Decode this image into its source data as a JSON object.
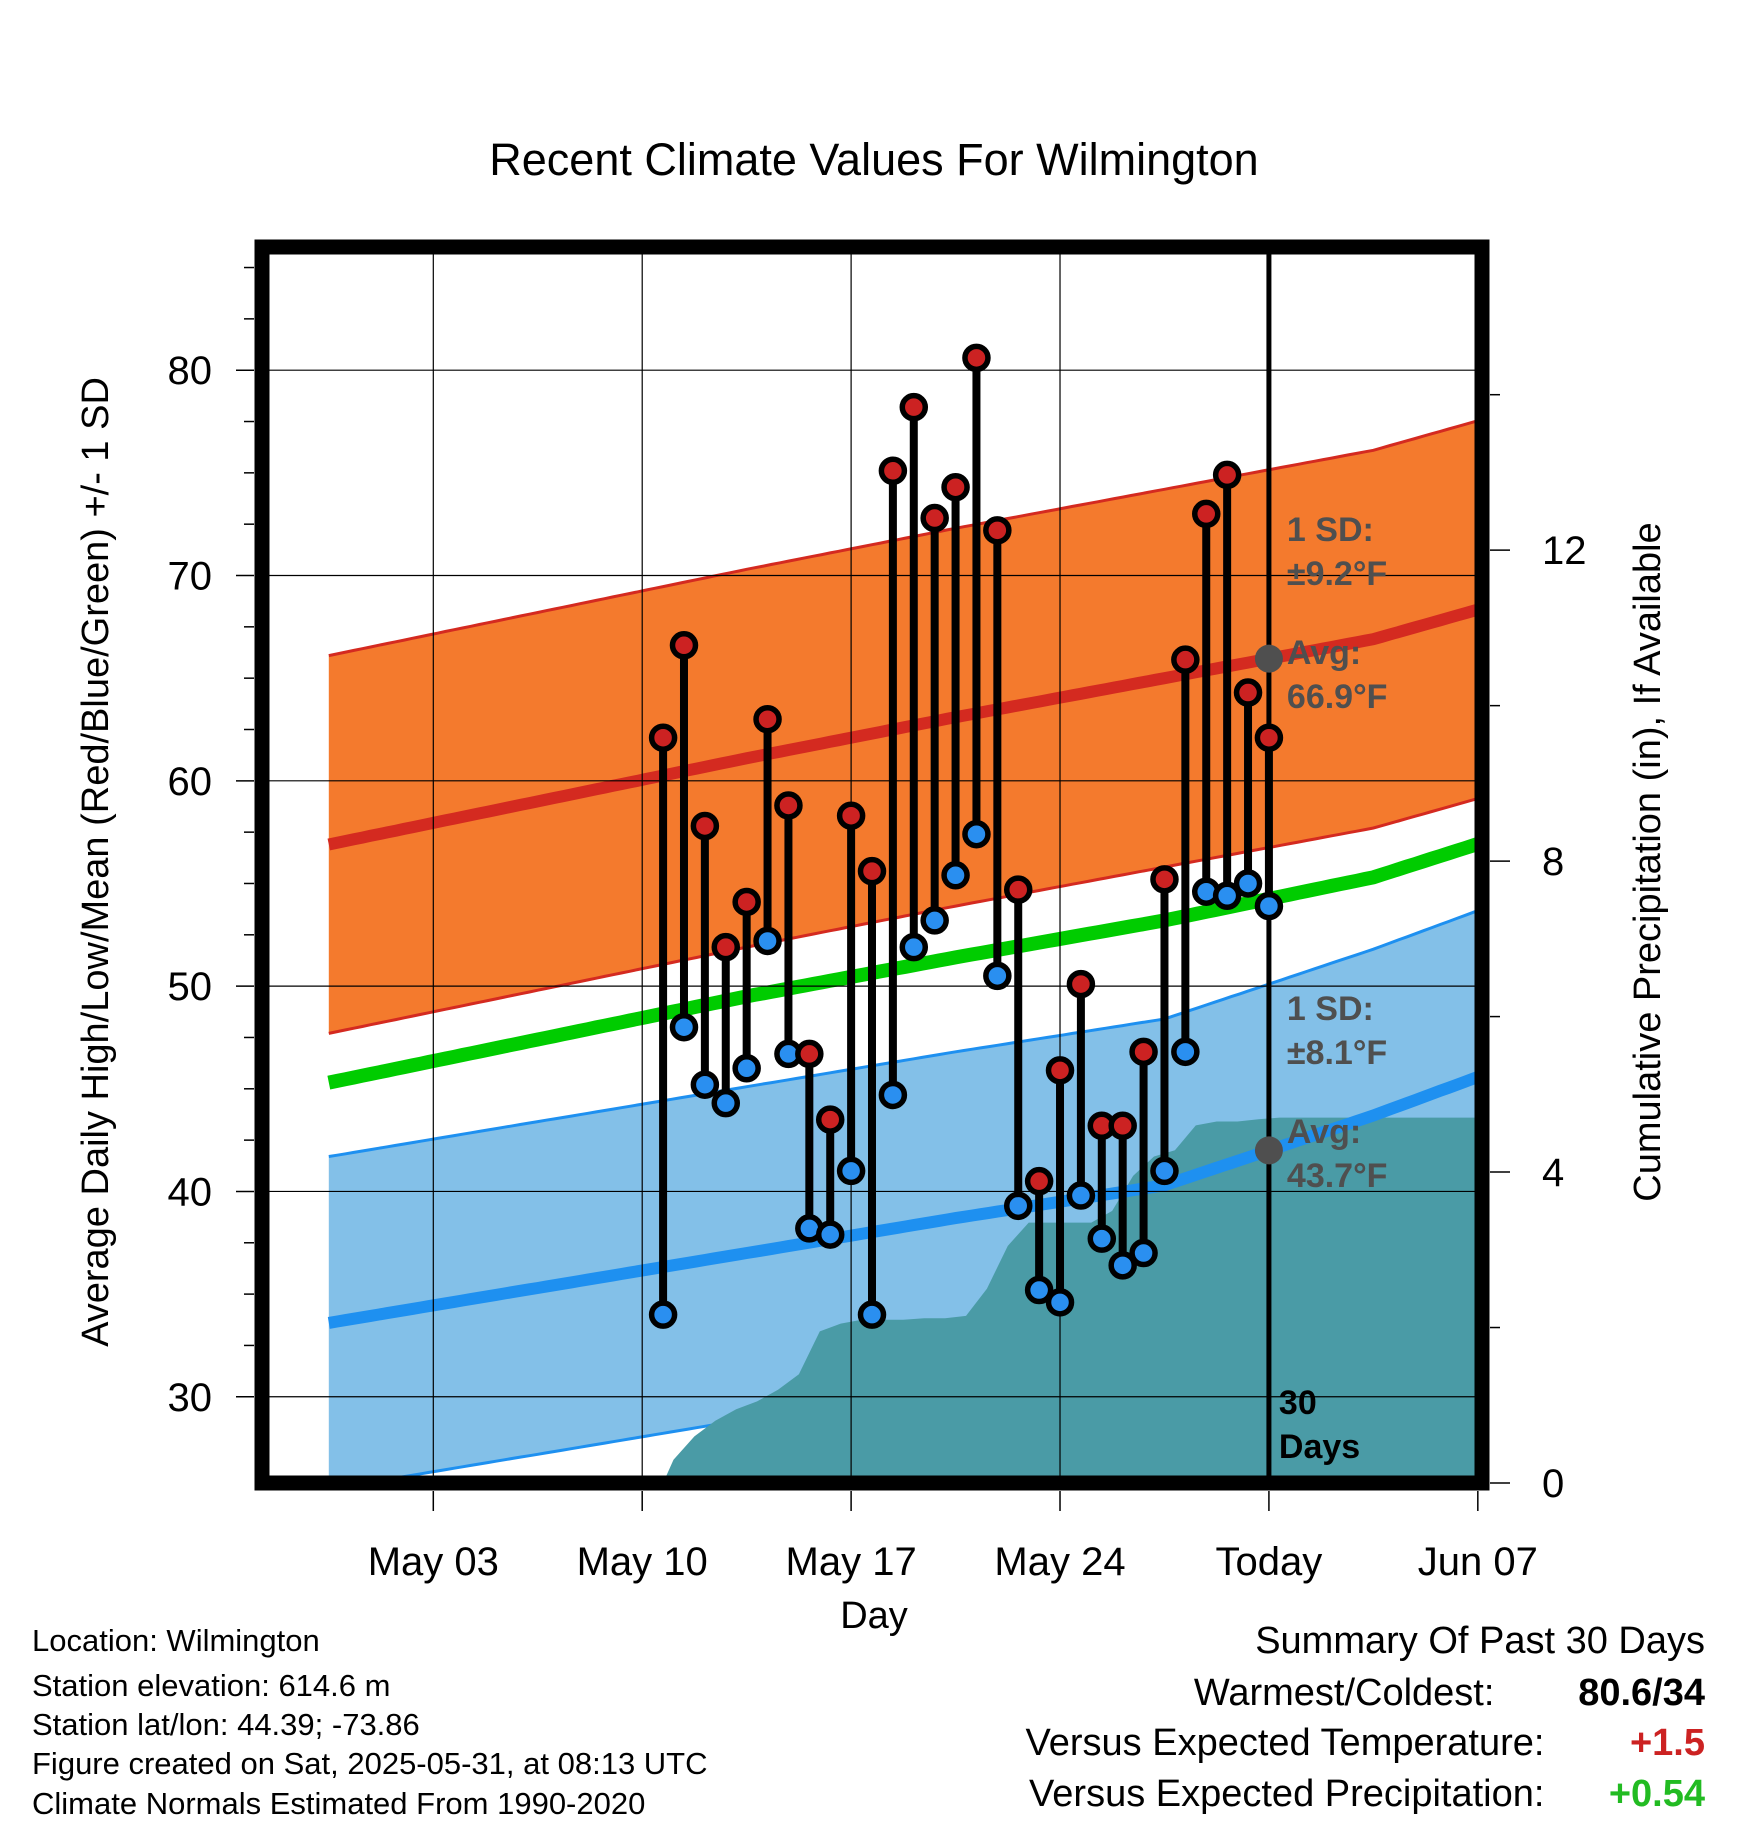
{
  "chart_data": {
    "type": "line",
    "title": "Recent Climate Values For Wilmington",
    "xlabel": "Day",
    "ylabel_left": "Average Daily High/Low/Mean (Red/Blue/Green) +/- 1 SD",
    "ylabel_right": "Cumulative Precipitation (in), If Available",
    "ylim": [
      25.8,
      86
    ],
    "y2lim": [
      0,
      15.9
    ],
    "xlim": [
      -3.2,
      55.2
    ],
    "yticks": [
      30,
      40,
      50,
      60,
      70,
      80
    ],
    "y2ticks": [
      0,
      4,
      8,
      12
    ],
    "xticks": [
      {
        "day": 5,
        "label": "May 03"
      },
      {
        "day": 15,
        "label": "May 10"
      },
      {
        "day": 25,
        "label": "May 17"
      },
      {
        "day": 35,
        "label": "May 24"
      },
      {
        "day": 45,
        "label": "Today"
      },
      {
        "day": 55,
        "label": "Jun 07"
      }
    ],
    "grid": true,
    "today_marker": {
      "day": 45,
      "label_line1": "30",
      "label_line2": "Days"
    },
    "daily": [
      {
        "day": 16,
        "high": 62.1,
        "low": 34.0
      },
      {
        "day": 17,
        "high": 66.6,
        "low": 48.0
      },
      {
        "day": 18,
        "high": 57.8,
        "low": 45.2
      },
      {
        "day": 19,
        "high": 51.9,
        "low": 44.3
      },
      {
        "day": 20,
        "high": 54.1,
        "low": 46.0
      },
      {
        "day": 21,
        "high": 63.0,
        "low": 52.2
      },
      {
        "day": 22,
        "high": 58.8,
        "low": 46.7
      },
      {
        "day": 23,
        "high": 46.7,
        "low": 38.2
      },
      {
        "day": 24,
        "high": 43.5,
        "low": 37.9
      },
      {
        "day": 25,
        "high": 58.3,
        "low": 41.0
      },
      {
        "day": 26,
        "high": 55.6,
        "low": 34.0
      },
      {
        "day": 27,
        "high": 75.1,
        "low": 44.7
      },
      {
        "day": 28,
        "high": 78.2,
        "low": 51.9
      },
      {
        "day": 29,
        "high": 72.8,
        "low": 53.2
      },
      {
        "day": 30,
        "high": 74.3,
        "low": 55.4
      },
      {
        "day": 31,
        "high": 80.6,
        "low": 57.4
      },
      {
        "day": 32,
        "high": 72.2,
        "low": 50.5
      },
      {
        "day": 33,
        "high": 54.7,
        "low": 39.3
      },
      {
        "day": 34,
        "high": 40.5,
        "low": 35.2
      },
      {
        "day": 35,
        "high": 45.9,
        "low": 34.6
      },
      {
        "day": 36,
        "high": 50.1,
        "low": 39.8
      },
      {
        "day": 37,
        "high": 43.2,
        "low": 37.7
      },
      {
        "day": 38,
        "high": 43.2,
        "low": 36.4
      },
      {
        "day": 39,
        "high": 46.8,
        "low": 37.0
      },
      {
        "day": 40,
        "high": 55.2,
        "low": 41.0
      },
      {
        "day": 41,
        "high": 65.9,
        "low": 46.8
      },
      {
        "day": 42,
        "high": 73.0,
        "low": 54.6
      },
      {
        "day": 43,
        "high": 74.9,
        "low": 54.4
      },
      {
        "day": 44,
        "high": 64.3,
        "low": 55.0
      },
      {
        "day": 45,
        "high": 62.1,
        "low": 53.9
      }
    ],
    "normals": {
      "day": [
        0,
        10,
        20,
        30,
        40,
        50,
        58
      ],
      "high_mean": [
        56.9,
        59.0,
        61.1,
        63.1,
        65.0,
        66.9,
        69.2
      ],
      "low_mean": [
        33.6,
        35.3,
        37.0,
        38.7,
        40.3,
        43.7,
        46.7
      ],
      "mean": [
        45.3,
        47.4,
        49.5,
        51.4,
        53.2,
        55.3,
        57.9
      ]
    },
    "sd": {
      "high_label": "1 SD:",
      "high_value": "±9.2°F",
      "high_avg_label": "Avg:",
      "high_avg_value": "66.9°F",
      "low_label": "1 SD:",
      "low_value": "±8.1°F",
      "low_avg_label": "Avg:",
      "low_avg_value": "43.7°F",
      "high_sd": 9.2,
      "low_sd": 8.1
    },
    "precip_cumulative": {
      "day": [
        16,
        16.5,
        17.5,
        18.5,
        19.5,
        20.5,
        21.5,
        22.5,
        23.5,
        24.5,
        25.5,
        26.5,
        27.5,
        28.5,
        29.5,
        30.5,
        31.5,
        32.5,
        33.5,
        34.5,
        35.5,
        36.5,
        37.5,
        38.5,
        39.5,
        40.5,
        41.5,
        42.5,
        43.5,
        44.5,
        45.5,
        46.5,
        47.5,
        48.5,
        49.5,
        50.5,
        51.5,
        52.5,
        53.5,
        54.5,
        55.2
      ],
      "value": [
        0,
        0.3,
        0.6,
        0.8,
        0.95,
        1.05,
        1.2,
        1.4,
        1.95,
        2.05,
        2.1,
        2.1,
        2.1,
        2.12,
        2.12,
        2.15,
        2.5,
        3.05,
        3.35,
        3.35,
        3.35,
        3.35,
        3.5,
        3.95,
        4.2,
        4.28,
        4.6,
        4.65,
        4.65,
        4.68,
        4.7,
        4.7,
        4.7,
        4.7,
        4.7,
        4.7,
        4.7,
        4.7,
        4.7,
        4.7,
        4.7
      ]
    },
    "colors": {
      "high_band": "#f47a2d",
      "high_line": "#d42a20",
      "low_band": "#83c0e8",
      "low_line": "#1e90f0",
      "mean_line": "#00cc00",
      "precip": "#4a9ba6",
      "marker_high": "#cc2222",
      "marker_low": "#2a8ff0",
      "annotation": "#4f4f4f"
    }
  },
  "info": {
    "location": "Location: Wilmington",
    "elevation": "Station elevation: 614.6 m",
    "latlon": "Station lat/lon: 44.39; -73.86",
    "created": "Figure created on Sat, 2025-05-31, at 08:13 UTC",
    "normals": "Climate Normals Estimated From 1990-2020"
  },
  "summary": {
    "title": "Summary Of Past 30 Days",
    "warm_cold_label": "Warmest/Coldest:",
    "warm_cold_value": "80.6/34",
    "temp_label": "Versus Expected Temperature:",
    "temp_value": "+1.5",
    "temp_color": "#cc2222",
    "precip_label": "Versus Expected Precipitation:",
    "precip_value": "+0.54",
    "precip_color": "#22bb22"
  }
}
